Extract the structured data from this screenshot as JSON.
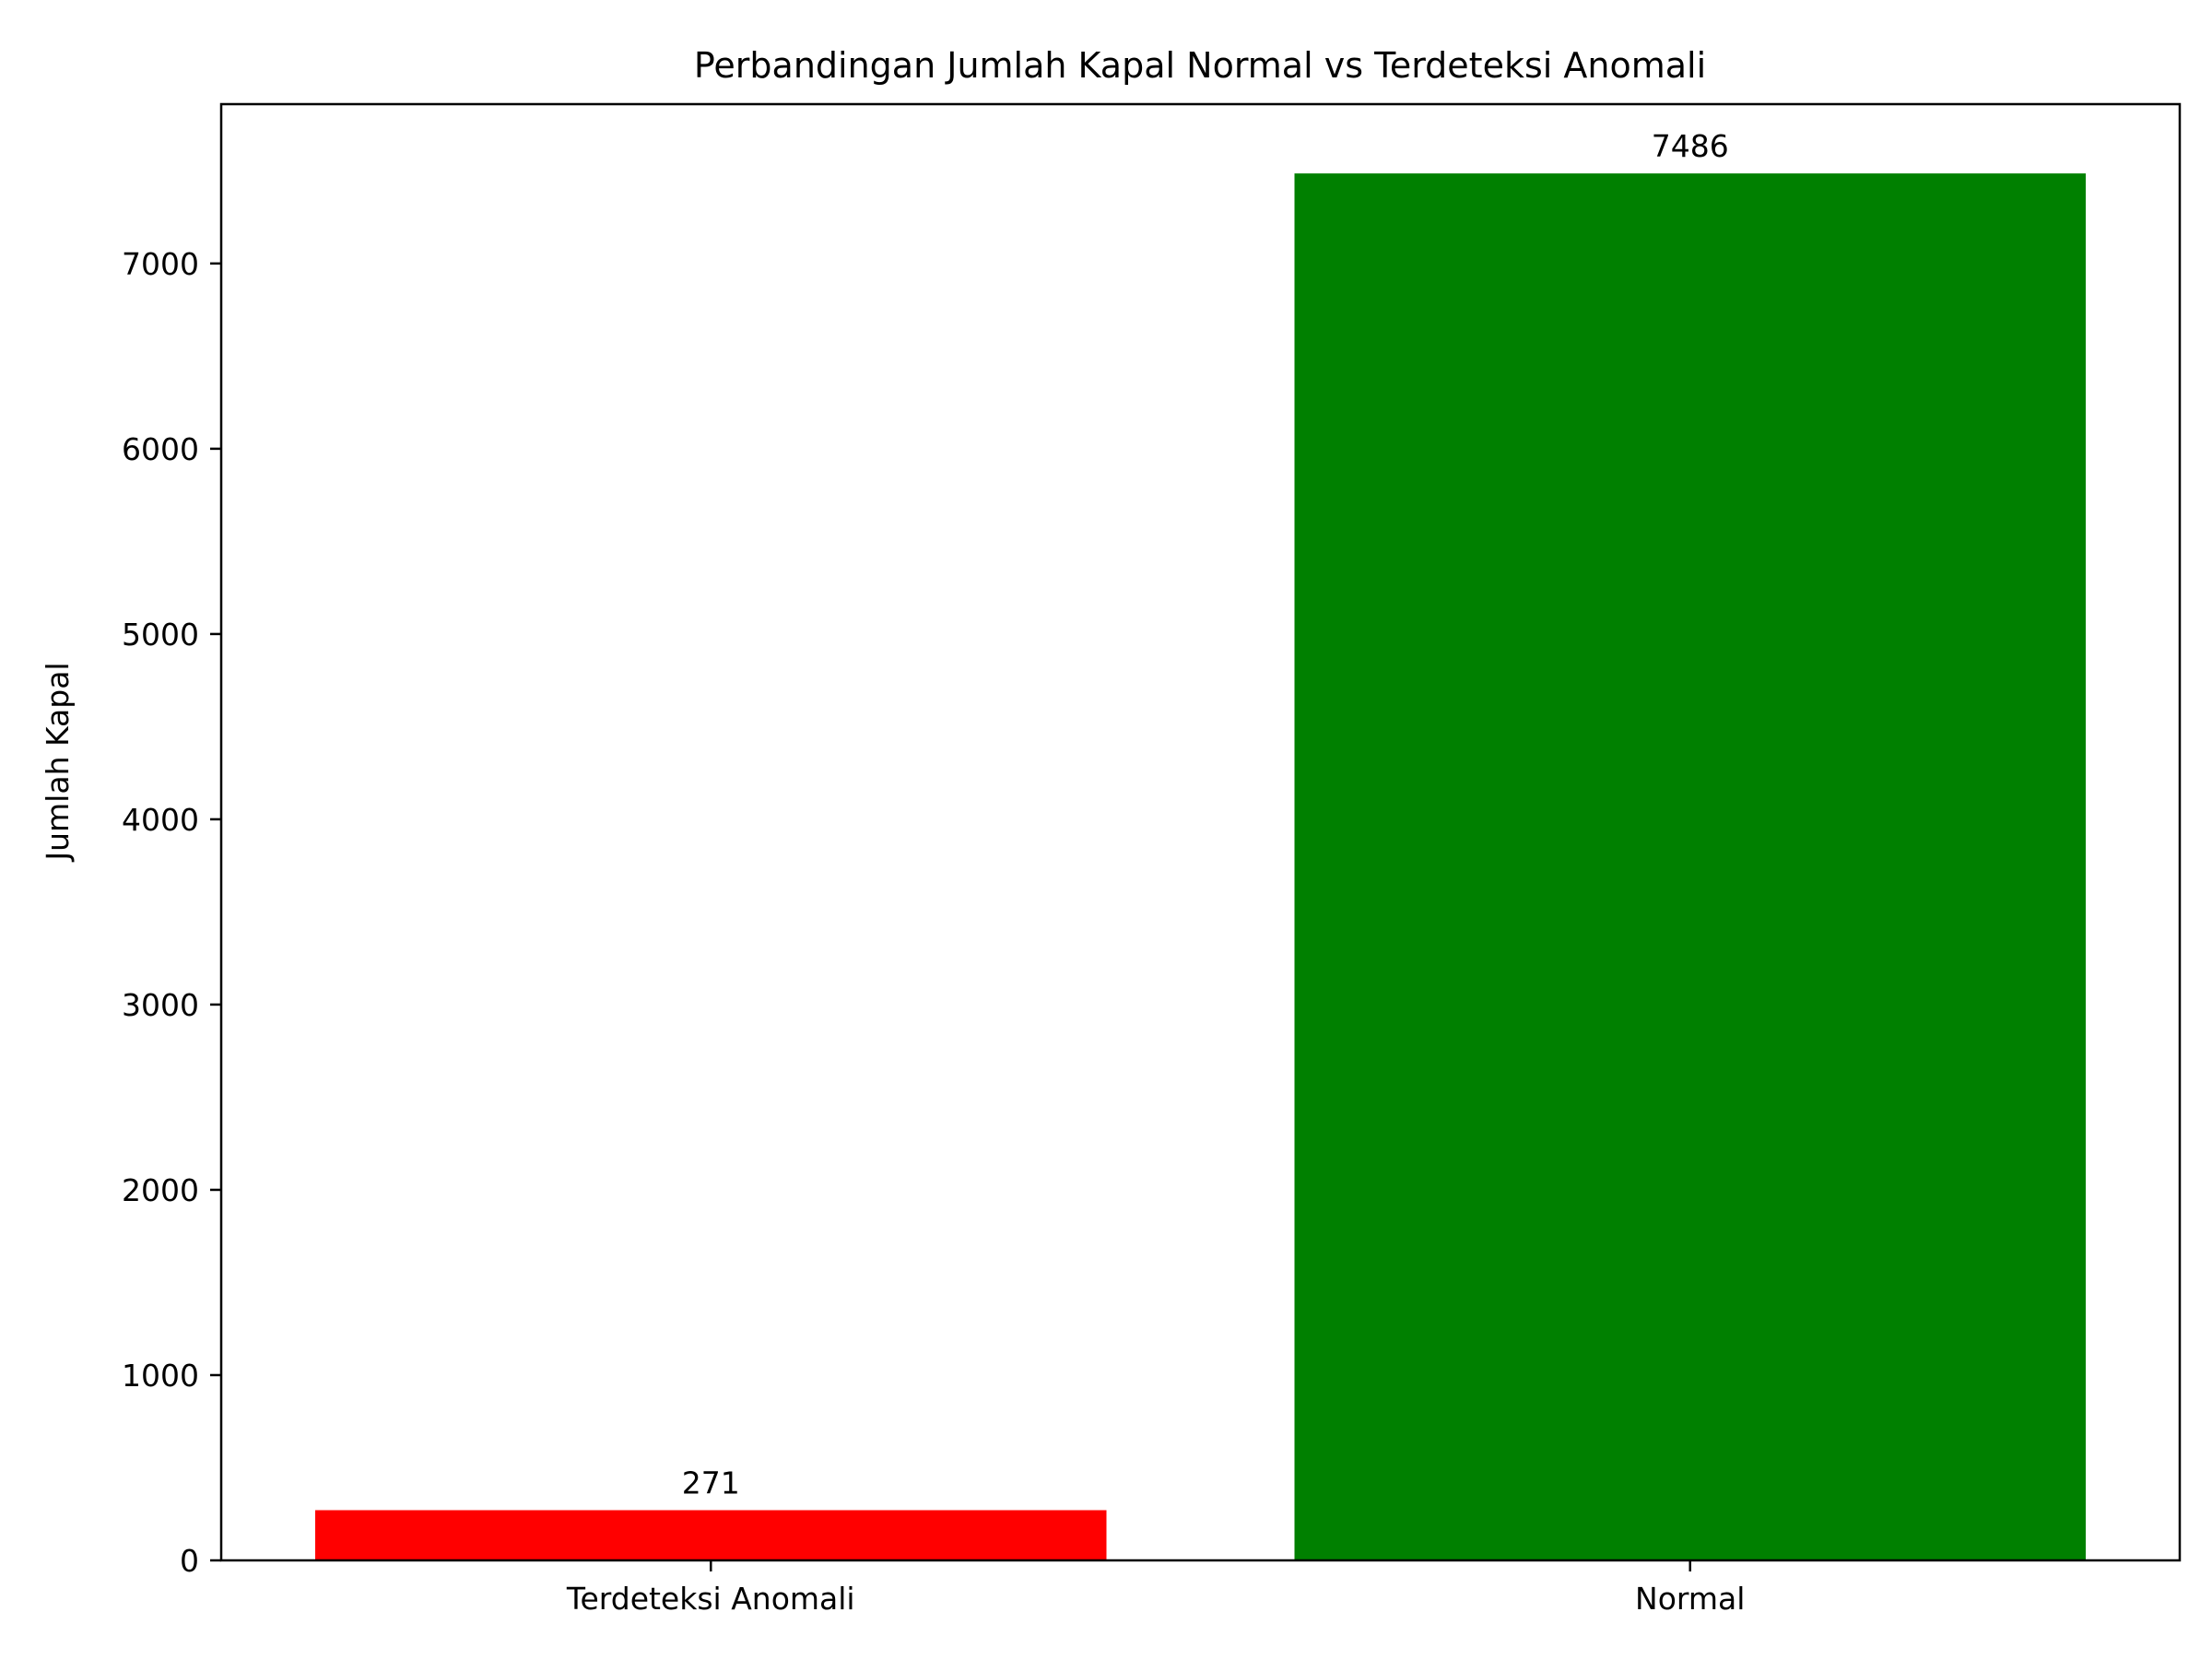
{
  "chart_data": {
    "type": "bar",
    "title": "Perbandingan Jumlah Kapal Normal vs Terdeteksi Anomali",
    "xlabel": "",
    "ylabel": "Jumlah Kapal",
    "categories": [
      "Terdeteksi Anomali",
      "Normal"
    ],
    "values": [
      271,
      7486
    ],
    "data_labels": [
      "271",
      "7486"
    ],
    "colors": [
      "#ff0000",
      "#008000"
    ],
    "ylim": [
      0,
      7860
    ],
    "yticks": [
      0,
      1000,
      2000,
      3000,
      4000,
      5000,
      6000,
      7000
    ],
    "ytick_labels": [
      "0",
      "1000",
      "2000",
      "3000",
      "4000",
      "5000",
      "6000",
      "7000"
    ],
    "grid": false,
    "legend": "none"
  }
}
